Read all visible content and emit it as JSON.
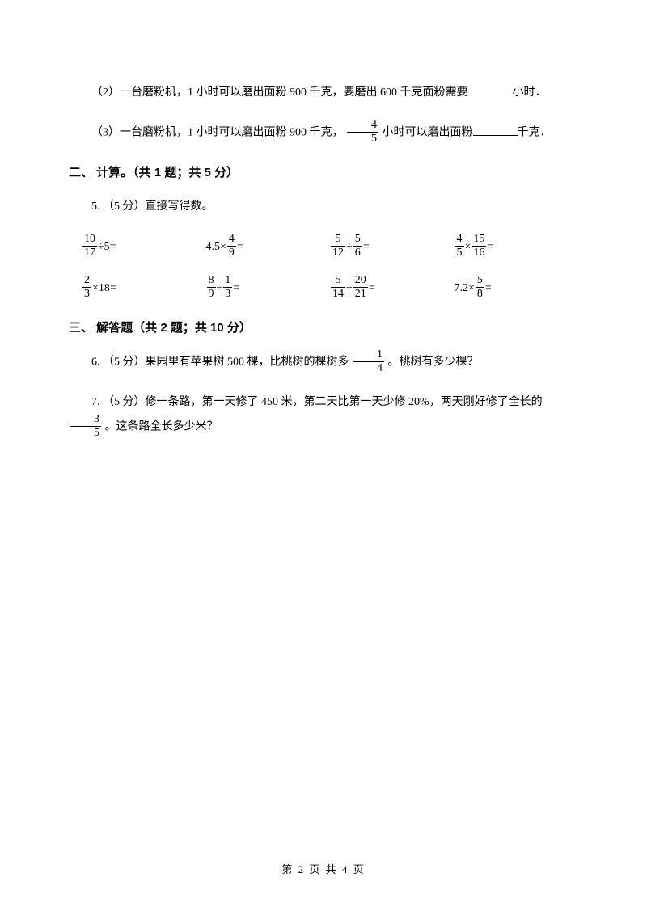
{
  "q2": {
    "prefix": "（2）一台磨粉机，1 小时可以磨出面粉 900 千克，要磨出 600 千克面粉需要",
    "suffix": "小时．"
  },
  "q3": {
    "prefix": "（3）一台磨粉机，1 小时可以磨出面粉 900 千克，",
    "mid": " 小时可以磨出面粉",
    "suffix": "千克．",
    "frac": {
      "num": "4",
      "den": "5"
    }
  },
  "section2": "二、 计算。（共 1 题；共 5 分）",
  "q5_lead": "5. （5 分）直接写得数。",
  "calc": {
    "row1": [
      {
        "lhs_num": "10",
        "lhs_den": "17",
        "op": "÷5="
      },
      {
        "pre": "4.5×",
        "num": "4",
        "den": "9",
        "post": " ="
      },
      {
        "a_num": "5",
        "a_den": "12",
        "op": " ÷ ",
        "b_num": "5",
        "b_den": "6",
        "post": " ="
      },
      {
        "a_num": "4",
        "a_den": "5",
        "op": " × ",
        "b_num": "15",
        "b_den": "16",
        "post": " ="
      }
    ],
    "row2": [
      {
        "lhs_num": "2",
        "lhs_den": "3",
        "op": "×18="
      },
      {
        "a_num": "8",
        "a_den": "9",
        "op": " ÷ ",
        "b_num": "1",
        "b_den": "3",
        "post": " ="
      },
      {
        "a_num": "5",
        "a_den": "14",
        "op": " ÷ ",
        "b_num": "20",
        "b_den": "21",
        "post": " ="
      },
      {
        "pre": "7.2×",
        "num": "5",
        "den": "8",
        "post": " ="
      }
    ]
  },
  "section3": "三、 解答题（共 2 题；共 10 分）",
  "q6": {
    "pre": "6. （5 分）果园里有苹果树 500 棵，比桃树的棵树多 ",
    "frac": {
      "num": "1",
      "den": "4"
    },
    "post": " 。桃树有多少棵？"
  },
  "q7": {
    "pre": "7. （5 分）修一条路，第一天修了 450 米，第二天比第一天少修 20%，两天刚好修了全长的 ",
    "frac": {
      "num": "3",
      "den": "5"
    },
    "post": " 。这条路全长多少米？"
  },
  "footer": "第 2 页 共 4 页"
}
